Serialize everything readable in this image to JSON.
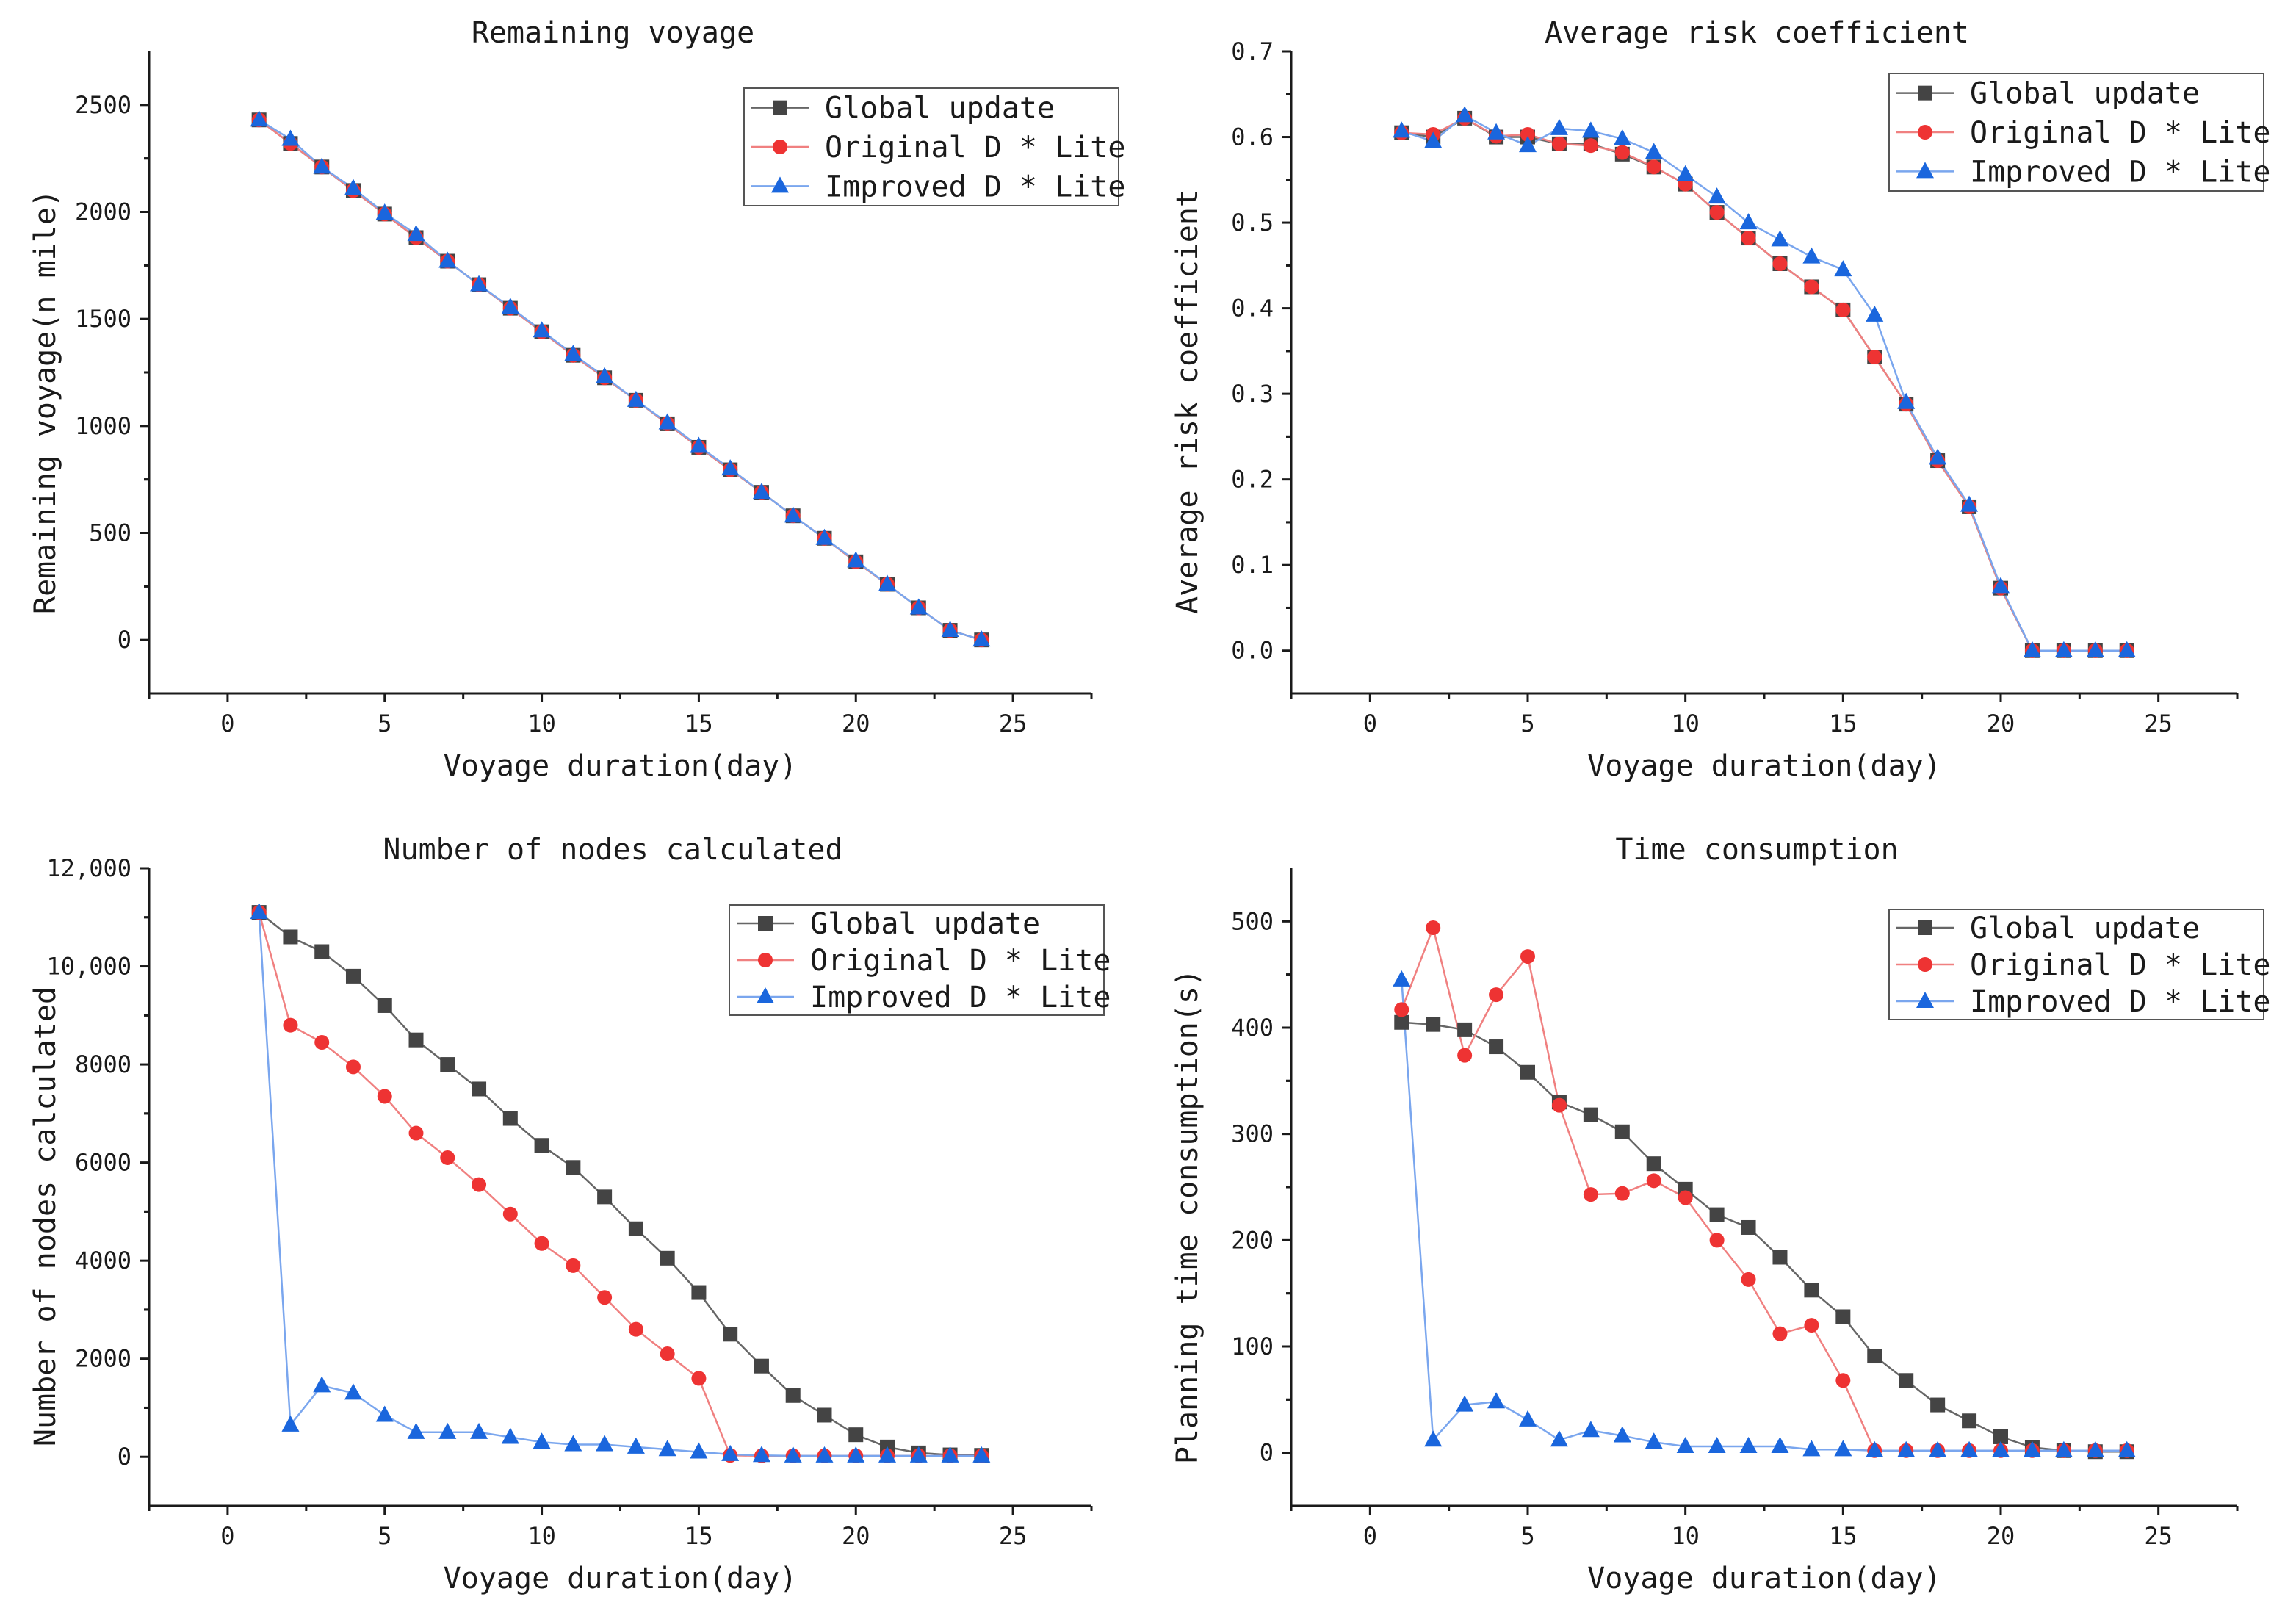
{
  "colors": {
    "global": "#444444",
    "original": "#ee3333",
    "improved": "#1a66dd",
    "global_line": "#666666",
    "original_line": "#f08080",
    "improved_line": "#7aa6ee"
  },
  "chart_data": [
    {
      "type": "line",
      "title": "Remaining voyage",
      "xlabel": "Voyage duration(day)",
      "ylabel": "Remaining voyage(n mile)",
      "xlim": [
        -2.5,
        27.5
      ],
      "ylim": [
        -250,
        2750
      ],
      "xticks": [
        0,
        5,
        10,
        15,
        20,
        25
      ],
      "xtick_labels": [
        "0",
        "5",
        "10",
        "15",
        "20",
        "25"
      ],
      "yticks": [
        0,
        500,
        1000,
        1500,
        2000,
        2500
      ],
      "ytick_labels": [
        "0",
        "500",
        "1000",
        "1500",
        "2000",
        "2500"
      ],
      "legend_position": "top-right",
      "x": [
        1,
        2,
        3,
        4,
        5,
        6,
        7,
        8,
        9,
        10,
        11,
        12,
        13,
        14,
        15,
        16,
        17,
        18,
        19,
        20,
        21,
        22,
        23,
        24
      ],
      "series": [
        {
          "name": "Global update",
          "marker": "square",
          "values": [
            2430,
            2320,
            2210,
            2100,
            1990,
            1880,
            1770,
            1660,
            1550,
            1440,
            1330,
            1225,
            1120,
            1010,
            900,
            795,
            690,
            580,
            475,
            365,
            260,
            150,
            45,
            0
          ]
        },
        {
          "name": "Original D * Lite",
          "marker": "circle",
          "values": [
            2430,
            2320,
            2210,
            2100,
            1990,
            1880,
            1770,
            1660,
            1550,
            1440,
            1330,
            1225,
            1120,
            1010,
            900,
            795,
            690,
            580,
            475,
            365,
            260,
            150,
            45,
            0
          ]
        },
        {
          "name": "Improved D * Lite",
          "marker": "triangle",
          "values": [
            2430,
            2340,
            2210,
            2110,
            1995,
            1895,
            1770,
            1660,
            1555,
            1445,
            1335,
            1230,
            1120,
            1015,
            905,
            800,
            690,
            580,
            475,
            370,
            260,
            150,
            45,
            0
          ]
        }
      ]
    },
    {
      "type": "line",
      "title": "Average risk coefficient",
      "xlabel": "Voyage duration(day)",
      "ylabel": "Average risk coefficient",
      "xlim": [
        -2.5,
        27.5
      ],
      "ylim": [
        -0.05,
        0.7
      ],
      "xticks": [
        0,
        5,
        10,
        15,
        20,
        25
      ],
      "xtick_labels": [
        "0",
        "5",
        "10",
        "15",
        "20",
        "25"
      ],
      "yticks": [
        0.0,
        0.1,
        0.2,
        0.3,
        0.4,
        0.5,
        0.6,
        0.7
      ],
      "ytick_labels": [
        "0.0",
        "0.1",
        "0.2",
        "0.3",
        "0.4",
        "0.5",
        "0.6",
        "0.7"
      ],
      "legend_position": "top-right",
      "x": [
        1,
        2,
        3,
        4,
        5,
        6,
        7,
        8,
        9,
        10,
        11,
        12,
        13,
        14,
        15,
        16,
        17,
        18,
        19,
        20,
        21,
        22,
        23,
        24
      ],
      "series": [
        {
          "name": "Global update",
          "marker": "square",
          "values": [
            0.605,
            0.6,
            0.622,
            0.6,
            0.6,
            0.592,
            0.592,
            0.58,
            0.565,
            0.545,
            0.512,
            0.482,
            0.452,
            0.425,
            0.398,
            0.343,
            0.288,
            0.222,
            0.168,
            0.073,
            0.0,
            0.0,
            0.0,
            0.0
          ]
        },
        {
          "name": "Original D * Lite",
          "marker": "circle",
          "values": [
            0.605,
            0.603,
            0.622,
            0.601,
            0.603,
            0.592,
            0.59,
            0.582,
            0.565,
            0.545,
            0.512,
            0.482,
            0.452,
            0.425,
            0.398,
            0.343,
            0.288,
            0.222,
            0.168,
            0.073,
            0.0,
            0.0,
            0.0,
            0.0
          ]
        },
        {
          "name": "Improved D * Lite",
          "marker": "triangle",
          "values": [
            0.607,
            0.595,
            0.625,
            0.605,
            0.59,
            0.61,
            0.607,
            0.598,
            0.582,
            0.556,
            0.53,
            0.5,
            0.48,
            0.46,
            0.445,
            0.392,
            0.29,
            0.225,
            0.17,
            0.075,
            0.0,
            0.0,
            0.0,
            0.0
          ]
        }
      ]
    },
    {
      "type": "line",
      "title": "Number of nodes calculated",
      "xlabel": "Voyage duration(day)",
      "ylabel": "Number of nodes calculated",
      "xlim": [
        -2.5,
        27.5
      ],
      "ylim": [
        -1000,
        12000
      ],
      "xticks": [
        0,
        5,
        10,
        15,
        20,
        25
      ],
      "xtick_labels": [
        "0",
        "5",
        "10",
        "15",
        "20",
        "25"
      ],
      "yticks": [
        0,
        2000,
        4000,
        6000,
        8000,
        10000,
        12000
      ],
      "ytick_labels": [
        "0",
        "2000",
        "4000",
        "6000",
        "8000",
        "10,000",
        "12,000"
      ],
      "legend_position": "top-right",
      "x": [
        1,
        2,
        3,
        4,
        5,
        6,
        7,
        8,
        9,
        10,
        11,
        12,
        13,
        14,
        15,
        16,
        17,
        18,
        19,
        20,
        21,
        22,
        23,
        24
      ],
      "series": [
        {
          "name": "Global update",
          "marker": "square",
          "values": [
            11100,
            10600,
            10300,
            9800,
            9200,
            8500,
            8000,
            7500,
            6900,
            6350,
            5900,
            5300,
            4650,
            4050,
            3350,
            2500,
            1850,
            1250,
            850,
            450,
            200,
            80,
            40,
            30
          ]
        },
        {
          "name": "Original D * Lite",
          "marker": "circle",
          "values": [
            11100,
            8800,
            8450,
            7950,
            7350,
            6600,
            6100,
            5550,
            4950,
            4350,
            3900,
            3250,
            2600,
            2100,
            1600,
            30,
            20,
            20,
            20,
            20,
            20,
            20,
            20,
            20
          ]
        },
        {
          "name": "Improved D * Lite",
          "marker": "triangle",
          "values": [
            11100,
            650,
            1450,
            1300,
            850,
            500,
            500,
            500,
            400,
            300,
            250,
            250,
            200,
            150,
            100,
            50,
            30,
            20,
            20,
            20,
            20,
            20,
            20,
            20
          ]
        }
      ]
    },
    {
      "type": "line",
      "title": "Time consumption",
      "xlabel": "Voyage duration(day)",
      "ylabel": "Planning time consumption(s)",
      "xlim": [
        -2.5,
        27.5
      ],
      "ylim": [
        -50,
        550
      ],
      "xticks": [
        0,
        5,
        10,
        15,
        20,
        25
      ],
      "xtick_labels": [
        "0",
        "5",
        "10",
        "15",
        "20",
        "25"
      ],
      "yticks": [
        0,
        100,
        200,
        300,
        400,
        500
      ],
      "ytick_labels": [
        "0",
        "100",
        "200",
        "300",
        "400",
        "500"
      ],
      "legend_position": "top-right",
      "x": [
        1,
        2,
        3,
        4,
        5,
        6,
        7,
        8,
        9,
        10,
        11,
        12,
        13,
        14,
        15,
        16,
        17,
        18,
        19,
        20,
        21,
        22,
        23,
        24
      ],
      "series": [
        {
          "name": "Global update",
          "marker": "square",
          "values": [
            405,
            403,
            398,
            382,
            358,
            330,
            318,
            302,
            272,
            248,
            224,
            212,
            184,
            153,
            128,
            91,
            68,
            45,
            30,
            15,
            5,
            2,
            1,
            1
          ]
        },
        {
          "name": "Original D * Lite",
          "marker": "circle",
          "values": [
            417,
            494,
            374,
            431,
            467,
            327,
            243,
            244,
            256,
            240,
            200,
            163,
            112,
            120,
            68,
            2,
            2,
            2,
            2,
            2,
            2,
            2,
            2,
            2
          ]
        },
        {
          "name": "Improved D * Lite",
          "marker": "triangle",
          "values": [
            445,
            12,
            45,
            48,
            31,
            12,
            21,
            16,
            10,
            6,
            6,
            6,
            6,
            3,
            3,
            2,
            2,
            2,
            2,
            2,
            2,
            2,
            2,
            2
          ]
        }
      ]
    }
  ]
}
